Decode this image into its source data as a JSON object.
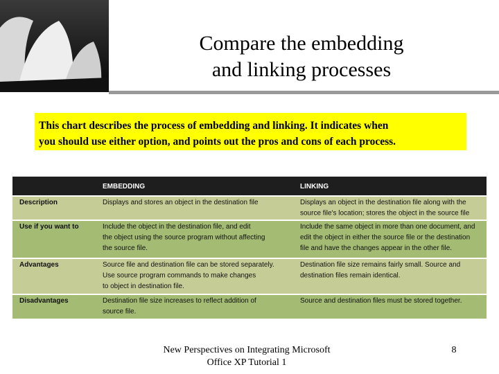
{
  "header": {
    "title": [
      "Compare the embedding",
      "and linking processes"
    ]
  },
  "intro": [
    "This chart describes the process of embedding and linking. It indicates when",
    "you should use either option, and points out the pros and cons of each process."
  ],
  "table": {
    "columns": [
      "EMBEDDING",
      "LINKING"
    ],
    "rows": [
      {
        "label": "Description",
        "cells": [
          [
            "Displays and stores an object in the destination file"
          ],
          [
            "Displays an object in the destination file along with the",
            "source file's location; stores the object in the source file"
          ]
        ]
      },
      {
        "label": "Use if you want to",
        "cells": [
          [
            "Include the object in the destination file, and edit",
            "the object using the source program without affecting",
            "the source file."
          ],
          [
            "Include the same object in more than one document, and",
            "edit the object in either the source file or the destination",
            "file and have the changes appear in the other file."
          ]
        ]
      },
      {
        "label": "Advantages",
        "cells": [
          [
            "Source file and destination file can be stored separately.",
            "Use source program commands to make changes",
            "to object in destination file."
          ],
          [
            "Destination file size remains fairly small. Source and",
            "destination files remain identical."
          ]
        ]
      },
      {
        "label": "Disadvantages",
        "cells": [
          [
            "Destination file size increases to reflect addition of",
            "source file."
          ],
          [
            "Source and destination files must be stored together."
          ]
        ]
      }
    ]
  },
  "footer": {
    "source": [
      "New Perspectives on Integrating Microsoft",
      "Office XP Tutorial 1"
    ],
    "page": "8"
  }
}
